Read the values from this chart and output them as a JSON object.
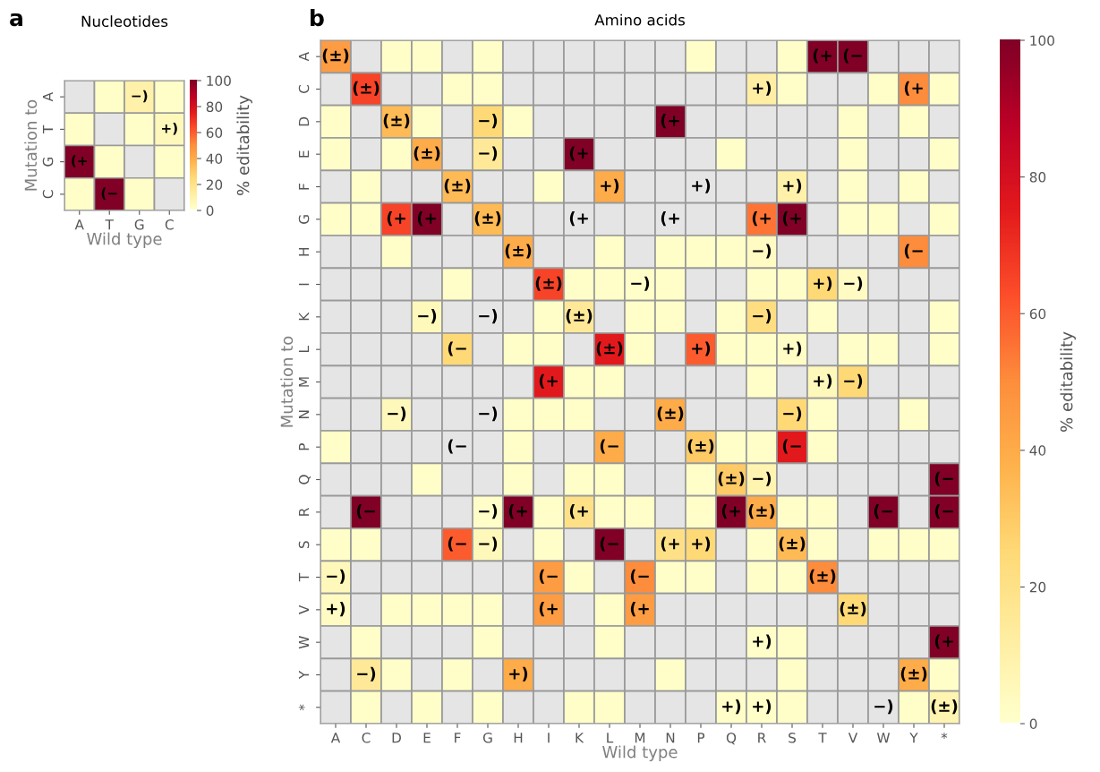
{
  "chart_data": [
    {
      "type": "heatmap",
      "title": "Nucleotides",
      "annotations": [
        "a"
      ],
      "xlabel": "Wild type",
      "ylabel": "Mutation to",
      "clabel": "% editability",
      "categories": [
        "A",
        "T",
        "G",
        "C"
      ],
      "y_categories": [
        "A",
        "T",
        "G",
        "C"
      ],
      "cells": [
        [
          null,
          1,
          10,
          1
        ],
        [
          1,
          null,
          1,
          5
        ],
        [
          100,
          1,
          null,
          1
        ],
        [
          1,
          100,
          1,
          null
        ]
      ],
      "cell_labels": [
        [
          null,
          null,
          "−)",
          null
        ],
        [
          null,
          null,
          null,
          "+)"
        ],
        [
          "(+",
          null,
          null,
          null
        ],
        [
          null,
          "(−",
          null,
          null
        ]
      ],
      "clim": [
        0,
        100
      ],
      "cticks": [
        0,
        20,
        40,
        60,
        80,
        100
      ]
    },
    {
      "type": "heatmap",
      "title": "Amino acids",
      "annotations": [
        "b"
      ],
      "xlabel": "Wild type",
      "ylabel": "Mutation to",
      "clabel": "% editability",
      "categories": [
        "A",
        "C",
        "D",
        "E",
        "F",
        "G",
        "H",
        "I",
        "K",
        "L",
        "M",
        "N",
        "P",
        "Q",
        "R",
        "S",
        "T",
        "V",
        "W",
        "Y",
        "*"
      ],
      "y_categories": [
        "A",
        "C",
        "D",
        "E",
        "F",
        "G",
        "H",
        "I",
        "K",
        "L",
        "M",
        "N",
        "P",
        "Q",
        "R",
        "S",
        "T",
        "V",
        "W",
        "Y",
        "*"
      ],
      "cells": [
        [
          45,
          null,
          1,
          1,
          null,
          1,
          null,
          null,
          null,
          null,
          null,
          null,
          1,
          null,
          null,
          1,
          100,
          100,
          null,
          null,
          null
        ],
        [
          null,
          65,
          null,
          null,
          1,
          1,
          null,
          null,
          null,
          null,
          null,
          null,
          null,
          null,
          12,
          1,
          null,
          null,
          1,
          50,
          1
        ],
        [
          1,
          null,
          35,
          1,
          null,
          25,
          1,
          null,
          null,
          null,
          null,
          100,
          null,
          null,
          null,
          null,
          null,
          1,
          null,
          1,
          null
        ],
        [
          1,
          null,
          1,
          40,
          null,
          15,
          null,
          null,
          100,
          null,
          null,
          null,
          null,
          1,
          null,
          null,
          null,
          1,
          null,
          null,
          1
        ],
        [
          null,
          1,
          null,
          null,
          35,
          null,
          null,
          1,
          null,
          40,
          null,
          null,
          null,
          null,
          null,
          10,
          null,
          1,
          null,
          1,
          null
        ],
        [
          1,
          1,
          65,
          100,
          null,
          35,
          null,
          null,
          null,
          null,
          null,
          null,
          null,
          null,
          55,
          100,
          null,
          1,
          1,
          null,
          1
        ],
        [
          null,
          null,
          1,
          null,
          null,
          null,
          40,
          null,
          null,
          1,
          null,
          1,
          1,
          1,
          3,
          null,
          null,
          null,
          null,
          50,
          null
        ],
        [
          null,
          null,
          null,
          null,
          1,
          null,
          null,
          65,
          1,
          1,
          1,
          1,
          null,
          null,
          1,
          1,
          25,
          3,
          null,
          null,
          null
        ],
        [
          null,
          null,
          null,
          5,
          null,
          null,
          null,
          1,
          15,
          null,
          1,
          1,
          null,
          1,
          22,
          null,
          1,
          null,
          null,
          null,
          1
        ],
        [
          null,
          null,
          null,
          null,
          25,
          null,
          1,
          1,
          null,
          75,
          1,
          null,
          60,
          1,
          1,
          2,
          null,
          1,
          1,
          null,
          1
        ],
        [
          null,
          null,
          null,
          null,
          null,
          null,
          null,
          75,
          1,
          1,
          null,
          null,
          null,
          null,
          1,
          null,
          5,
          25,
          null,
          null,
          null
        ],
        [
          null,
          null,
          5,
          null,
          null,
          null,
          1,
          1,
          1,
          null,
          null,
          40,
          null,
          null,
          null,
          25,
          1,
          null,
          null,
          1,
          null
        ],
        [
          1,
          null,
          null,
          null,
          null,
          null,
          1,
          null,
          null,
          40,
          null,
          null,
          30,
          1,
          1,
          75,
          1,
          null,
          null,
          null,
          null
        ],
        [
          null,
          null,
          null,
          1,
          null,
          null,
          1,
          null,
          1,
          1,
          null,
          null,
          1,
          30,
          8,
          null,
          null,
          null,
          null,
          null,
          100
        ],
        [
          null,
          100,
          null,
          null,
          null,
          1,
          100,
          1,
          20,
          1,
          1,
          null,
          1,
          100,
          40,
          1,
          1,
          null,
          100,
          null,
          100
        ],
        [
          1,
          1,
          null,
          null,
          60,
          5,
          null,
          1,
          null,
          100,
          null,
          20,
          25,
          null,
          1,
          35,
          1,
          null,
          1,
          1,
          1
        ],
        [
          5,
          null,
          null,
          null,
          null,
          null,
          null,
          45,
          1,
          null,
          50,
          1,
          1,
          null,
          1,
          1,
          50,
          null,
          null,
          null,
          null
        ],
        [
          3,
          null,
          1,
          1,
          1,
          1,
          null,
          45,
          null,
          1,
          45,
          null,
          null,
          null,
          null,
          null,
          null,
          25,
          null,
          null,
          null
        ],
        [
          null,
          1,
          null,
          null,
          null,
          1,
          null,
          null,
          null,
          1,
          null,
          null,
          null,
          null,
          1,
          1,
          null,
          null,
          null,
          null,
          100
        ],
        [
          null,
          15,
          1,
          null,
          1,
          null,
          40,
          null,
          null,
          null,
          null,
          1,
          null,
          null,
          null,
          1,
          null,
          null,
          null,
          40,
          1
        ],
        [
          null,
          1,
          null,
          1,
          null,
          1,
          null,
          null,
          1,
          1,
          null,
          null,
          null,
          1,
          1,
          1,
          null,
          null,
          null,
          1,
          8
        ]
      ],
      "cell_labels": [
        [
          "(±)",
          null,
          null,
          null,
          null,
          null,
          null,
          null,
          null,
          null,
          null,
          null,
          null,
          null,
          null,
          null,
          "(+",
          "(−",
          null,
          null,
          null
        ],
        [
          null,
          "(±)",
          null,
          null,
          null,
          null,
          null,
          null,
          null,
          null,
          null,
          null,
          null,
          null,
          "+)",
          null,
          null,
          null,
          null,
          "(+",
          null
        ],
        [
          null,
          null,
          "(±)",
          null,
          null,
          "−)",
          null,
          null,
          null,
          null,
          null,
          "(+",
          null,
          null,
          null,
          null,
          null,
          null,
          null,
          null,
          null
        ],
        [
          null,
          null,
          null,
          "(±)",
          null,
          "−)",
          null,
          null,
          "(+",
          null,
          null,
          null,
          null,
          null,
          null,
          null,
          null,
          null,
          null,
          null,
          null
        ],
        [
          null,
          null,
          null,
          null,
          "(±)",
          null,
          null,
          null,
          null,
          "+)",
          null,
          null,
          "+)",
          null,
          null,
          "+)",
          null,
          null,
          null,
          null,
          null
        ],
        [
          null,
          null,
          "(+",
          "(+",
          null,
          "(±)",
          null,
          null,
          "(+",
          null,
          null,
          "(+",
          null,
          null,
          "(+",
          "(+",
          null,
          null,
          null,
          null,
          null
        ],
        [
          null,
          null,
          null,
          null,
          null,
          null,
          "(±)",
          null,
          null,
          null,
          null,
          null,
          null,
          null,
          "−)",
          null,
          null,
          null,
          null,
          "(−",
          null
        ],
        [
          null,
          null,
          null,
          null,
          null,
          null,
          null,
          "(±)",
          null,
          null,
          "−)",
          null,
          null,
          null,
          null,
          null,
          "+)",
          "−)",
          null,
          null,
          null
        ],
        [
          null,
          null,
          null,
          "−)",
          null,
          "−)",
          null,
          null,
          "(±)",
          null,
          null,
          null,
          null,
          null,
          "−)",
          null,
          null,
          null,
          null,
          null,
          null
        ],
        [
          null,
          null,
          null,
          null,
          "(−",
          null,
          null,
          null,
          null,
          "(±)",
          null,
          null,
          "+)",
          null,
          null,
          "+)",
          null,
          null,
          null,
          null,
          null
        ],
        [
          null,
          null,
          null,
          null,
          null,
          null,
          null,
          "(+",
          null,
          null,
          null,
          null,
          null,
          null,
          null,
          null,
          "+)",
          "−)",
          null,
          null,
          null
        ],
        [
          null,
          null,
          "−)",
          null,
          null,
          "−)",
          null,
          null,
          null,
          null,
          null,
          "(±)",
          null,
          null,
          null,
          "−)",
          null,
          null,
          null,
          null,
          null
        ],
        [
          null,
          null,
          null,
          null,
          "(−",
          null,
          null,
          null,
          null,
          "(−",
          null,
          null,
          "(±)",
          null,
          null,
          "(−",
          null,
          null,
          null,
          null,
          null
        ],
        [
          null,
          null,
          null,
          null,
          null,
          null,
          null,
          null,
          null,
          null,
          null,
          null,
          null,
          "(±)",
          "−)",
          null,
          null,
          null,
          null,
          null,
          "(−"
        ],
        [
          null,
          "(−",
          null,
          null,
          null,
          "−)",
          "(+",
          null,
          "(+",
          null,
          null,
          null,
          null,
          "(+",
          "(±)",
          null,
          null,
          null,
          "(−",
          null,
          "(−"
        ],
        [
          null,
          null,
          null,
          null,
          "(−",
          "−)",
          null,
          null,
          null,
          "(−",
          null,
          "(+",
          "+)",
          null,
          null,
          "(±)",
          null,
          null,
          null,
          null,
          null
        ],
        [
          "−)",
          null,
          null,
          null,
          null,
          null,
          null,
          "(−",
          null,
          null,
          "(−",
          null,
          null,
          null,
          null,
          null,
          "(±)",
          null,
          null,
          null,
          null
        ],
        [
          "+)",
          null,
          null,
          null,
          null,
          null,
          null,
          "(+",
          null,
          null,
          "(+",
          null,
          null,
          null,
          null,
          null,
          null,
          "(±)",
          null,
          null,
          null
        ],
        [
          null,
          null,
          null,
          null,
          null,
          null,
          null,
          null,
          null,
          null,
          null,
          null,
          null,
          null,
          "+)",
          null,
          null,
          null,
          null,
          null,
          "(+"
        ],
        [
          null,
          "−)",
          null,
          null,
          null,
          null,
          "+)",
          null,
          null,
          null,
          null,
          null,
          null,
          null,
          null,
          null,
          null,
          null,
          null,
          "(±)",
          null
        ],
        [
          null,
          null,
          null,
          null,
          null,
          null,
          null,
          null,
          null,
          null,
          null,
          null,
          null,
          "+)",
          "+)",
          null,
          null,
          null,
          "−)",
          null,
          "(±)"
        ]
      ],
      "clim": [
        0,
        100
      ],
      "cticks": [
        0,
        20,
        40,
        60,
        80,
        100
      ]
    }
  ]
}
